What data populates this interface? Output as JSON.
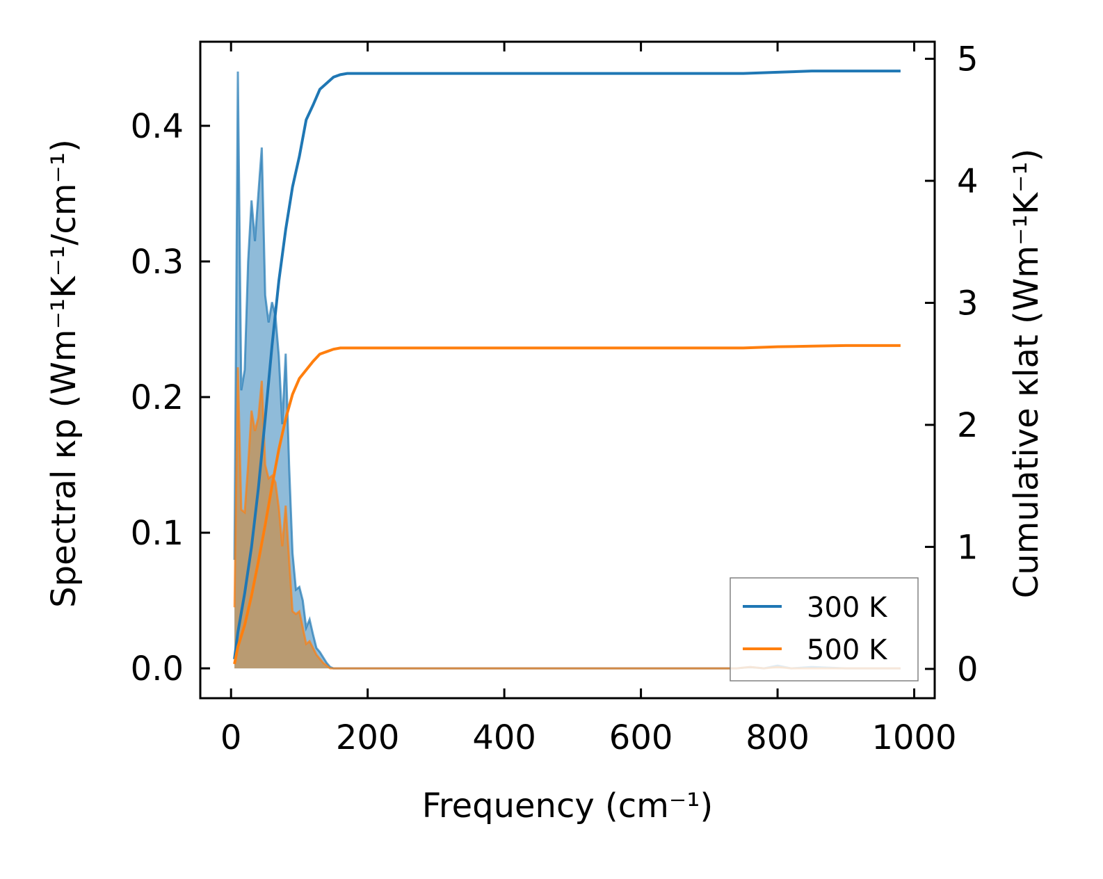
{
  "chart_data": {
    "type": "area",
    "title": "",
    "xlabel": "Frequency (cm⁻¹)",
    "ylabel_left": "Spectral κp (Wm⁻¹K⁻¹/cm⁻¹)",
    "ylabel_right": "Cumulative κlat (Wm⁻¹K⁻¹)",
    "xlim": [
      -45,
      1030
    ],
    "ylim_left": [
      -0.022,
      0.462
    ],
    "ylim_right": [
      -0.24,
      5.14
    ],
    "x_ticks": [
      0,
      200,
      400,
      600,
      800,
      1000
    ],
    "x_tick_labels": [
      "0",
      "200",
      "400",
      "600",
      "800",
      "1000"
    ],
    "y_left_ticks": [
      0.0,
      0.1,
      0.2,
      0.3,
      0.4
    ],
    "y_left_tick_labels": [
      "0.0",
      "0.1",
      "0.2",
      "0.3",
      "0.4"
    ],
    "y_right_ticks": [
      0,
      1,
      2,
      3,
      4,
      5
    ],
    "y_right_tick_labels": [
      "0",
      "1",
      "2",
      "3",
      "4",
      "5"
    ],
    "legend_position": "lower-right",
    "colors": {
      "300K": "#1f77b4",
      "500K": "#ff7f0e",
      "fill300": "#1f77b4",
      "fill500": "#d08a3a"
    },
    "series": [
      {
        "name": "300 K",
        "axis": "left",
        "kind": "spectral",
        "x": [
          5,
          10,
          15,
          20,
          25,
          30,
          35,
          40,
          45,
          50,
          55,
          60,
          65,
          70,
          75,
          80,
          85,
          90,
          95,
          100,
          105,
          110,
          115,
          120,
          125,
          130,
          135,
          140,
          145,
          150,
          155,
          160,
          165,
          170,
          175,
          180,
          185,
          190,
          200,
          300,
          400,
          500,
          600,
          700,
          740,
          760,
          780,
          800,
          820,
          850,
          900,
          980
        ],
        "values": [
          0.08,
          0.44,
          0.205,
          0.22,
          0.3,
          0.345,
          0.315,
          0.35,
          0.384,
          0.275,
          0.255,
          0.27,
          0.26,
          0.23,
          0.18,
          0.232,
          0.15,
          0.085,
          0.058,
          0.06,
          0.05,
          0.03,
          0.036,
          0.025,
          0.015,
          0.012,
          0.008,
          0.004,
          0.001,
          0.0,
          0.0,
          0.0,
          0.0,
          0.0,
          0.0,
          0.0,
          0.0,
          0.0,
          0.0,
          0.0,
          0.0,
          0.0,
          0.0,
          0.0,
          0.0,
          0.001,
          0.0,
          0.002,
          0.0,
          0.001,
          0.0,
          0.0
        ]
      },
      {
        "name": "500 K",
        "axis": "left",
        "kind": "spectral",
        "x": [
          5,
          10,
          15,
          20,
          25,
          30,
          35,
          40,
          45,
          50,
          55,
          60,
          65,
          70,
          75,
          80,
          85,
          90,
          95,
          100,
          105,
          110,
          115,
          120,
          125,
          130,
          135,
          140,
          145,
          150,
          155,
          160,
          165,
          170,
          175,
          180,
          185,
          190,
          200,
          300,
          400,
          500,
          600,
          700,
          740,
          760,
          780,
          800,
          820,
          850,
          900,
          980
        ],
        "values": [
          0.045,
          0.222,
          0.117,
          0.115,
          0.15,
          0.19,
          0.175,
          0.185,
          0.212,
          0.15,
          0.14,
          0.142,
          0.137,
          0.118,
          0.09,
          0.12,
          0.08,
          0.042,
          0.04,
          0.042,
          0.03,
          0.018,
          0.02,
          0.015,
          0.01,
          0.007,
          0.004,
          0.002,
          0.0,
          0.0,
          0.0,
          0.0,
          0.0,
          0.0,
          0.0,
          0.0,
          0.0,
          0.0,
          0.0,
          0.0,
          0.0,
          0.0,
          0.0,
          0.0,
          0.0,
          0.001,
          0.0,
          0.001,
          0.0,
          0.0,
          0.0,
          0.0
        ]
      },
      {
        "name": "300 K",
        "axis": "right",
        "kind": "cumulative",
        "x": [
          5,
          10,
          20,
          30,
          40,
          50,
          60,
          70,
          80,
          90,
          100,
          110,
          120,
          130,
          140,
          150,
          160,
          170,
          180,
          200,
          300,
          400,
          500,
          600,
          700,
          750,
          800,
          850,
          900,
          980
        ],
        "values": [
          0.08,
          0.3,
          0.62,
          1.0,
          1.48,
          2.05,
          2.65,
          3.18,
          3.6,
          3.95,
          4.2,
          4.5,
          4.62,
          4.75,
          4.8,
          4.85,
          4.87,
          4.88,
          4.88,
          4.88,
          4.88,
          4.88,
          4.88,
          4.88,
          4.88,
          4.88,
          4.89,
          4.9,
          4.9,
          4.9
        ]
      },
      {
        "name": "500 K",
        "axis": "right",
        "kind": "cumulative",
        "x": [
          5,
          10,
          20,
          30,
          40,
          50,
          60,
          70,
          80,
          90,
          100,
          110,
          120,
          130,
          140,
          150,
          160,
          170,
          180,
          200,
          300,
          400,
          500,
          600,
          700,
          750,
          800,
          850,
          900,
          980
        ],
        "values": [
          0.04,
          0.18,
          0.36,
          0.6,
          0.88,
          1.18,
          1.5,
          1.8,
          2.05,
          2.25,
          2.38,
          2.45,
          2.52,
          2.58,
          2.6,
          2.62,
          2.63,
          2.63,
          2.63,
          2.63,
          2.63,
          2.63,
          2.63,
          2.63,
          2.63,
          2.63,
          2.64,
          2.645,
          2.65,
          2.65
        ]
      }
    ]
  }
}
